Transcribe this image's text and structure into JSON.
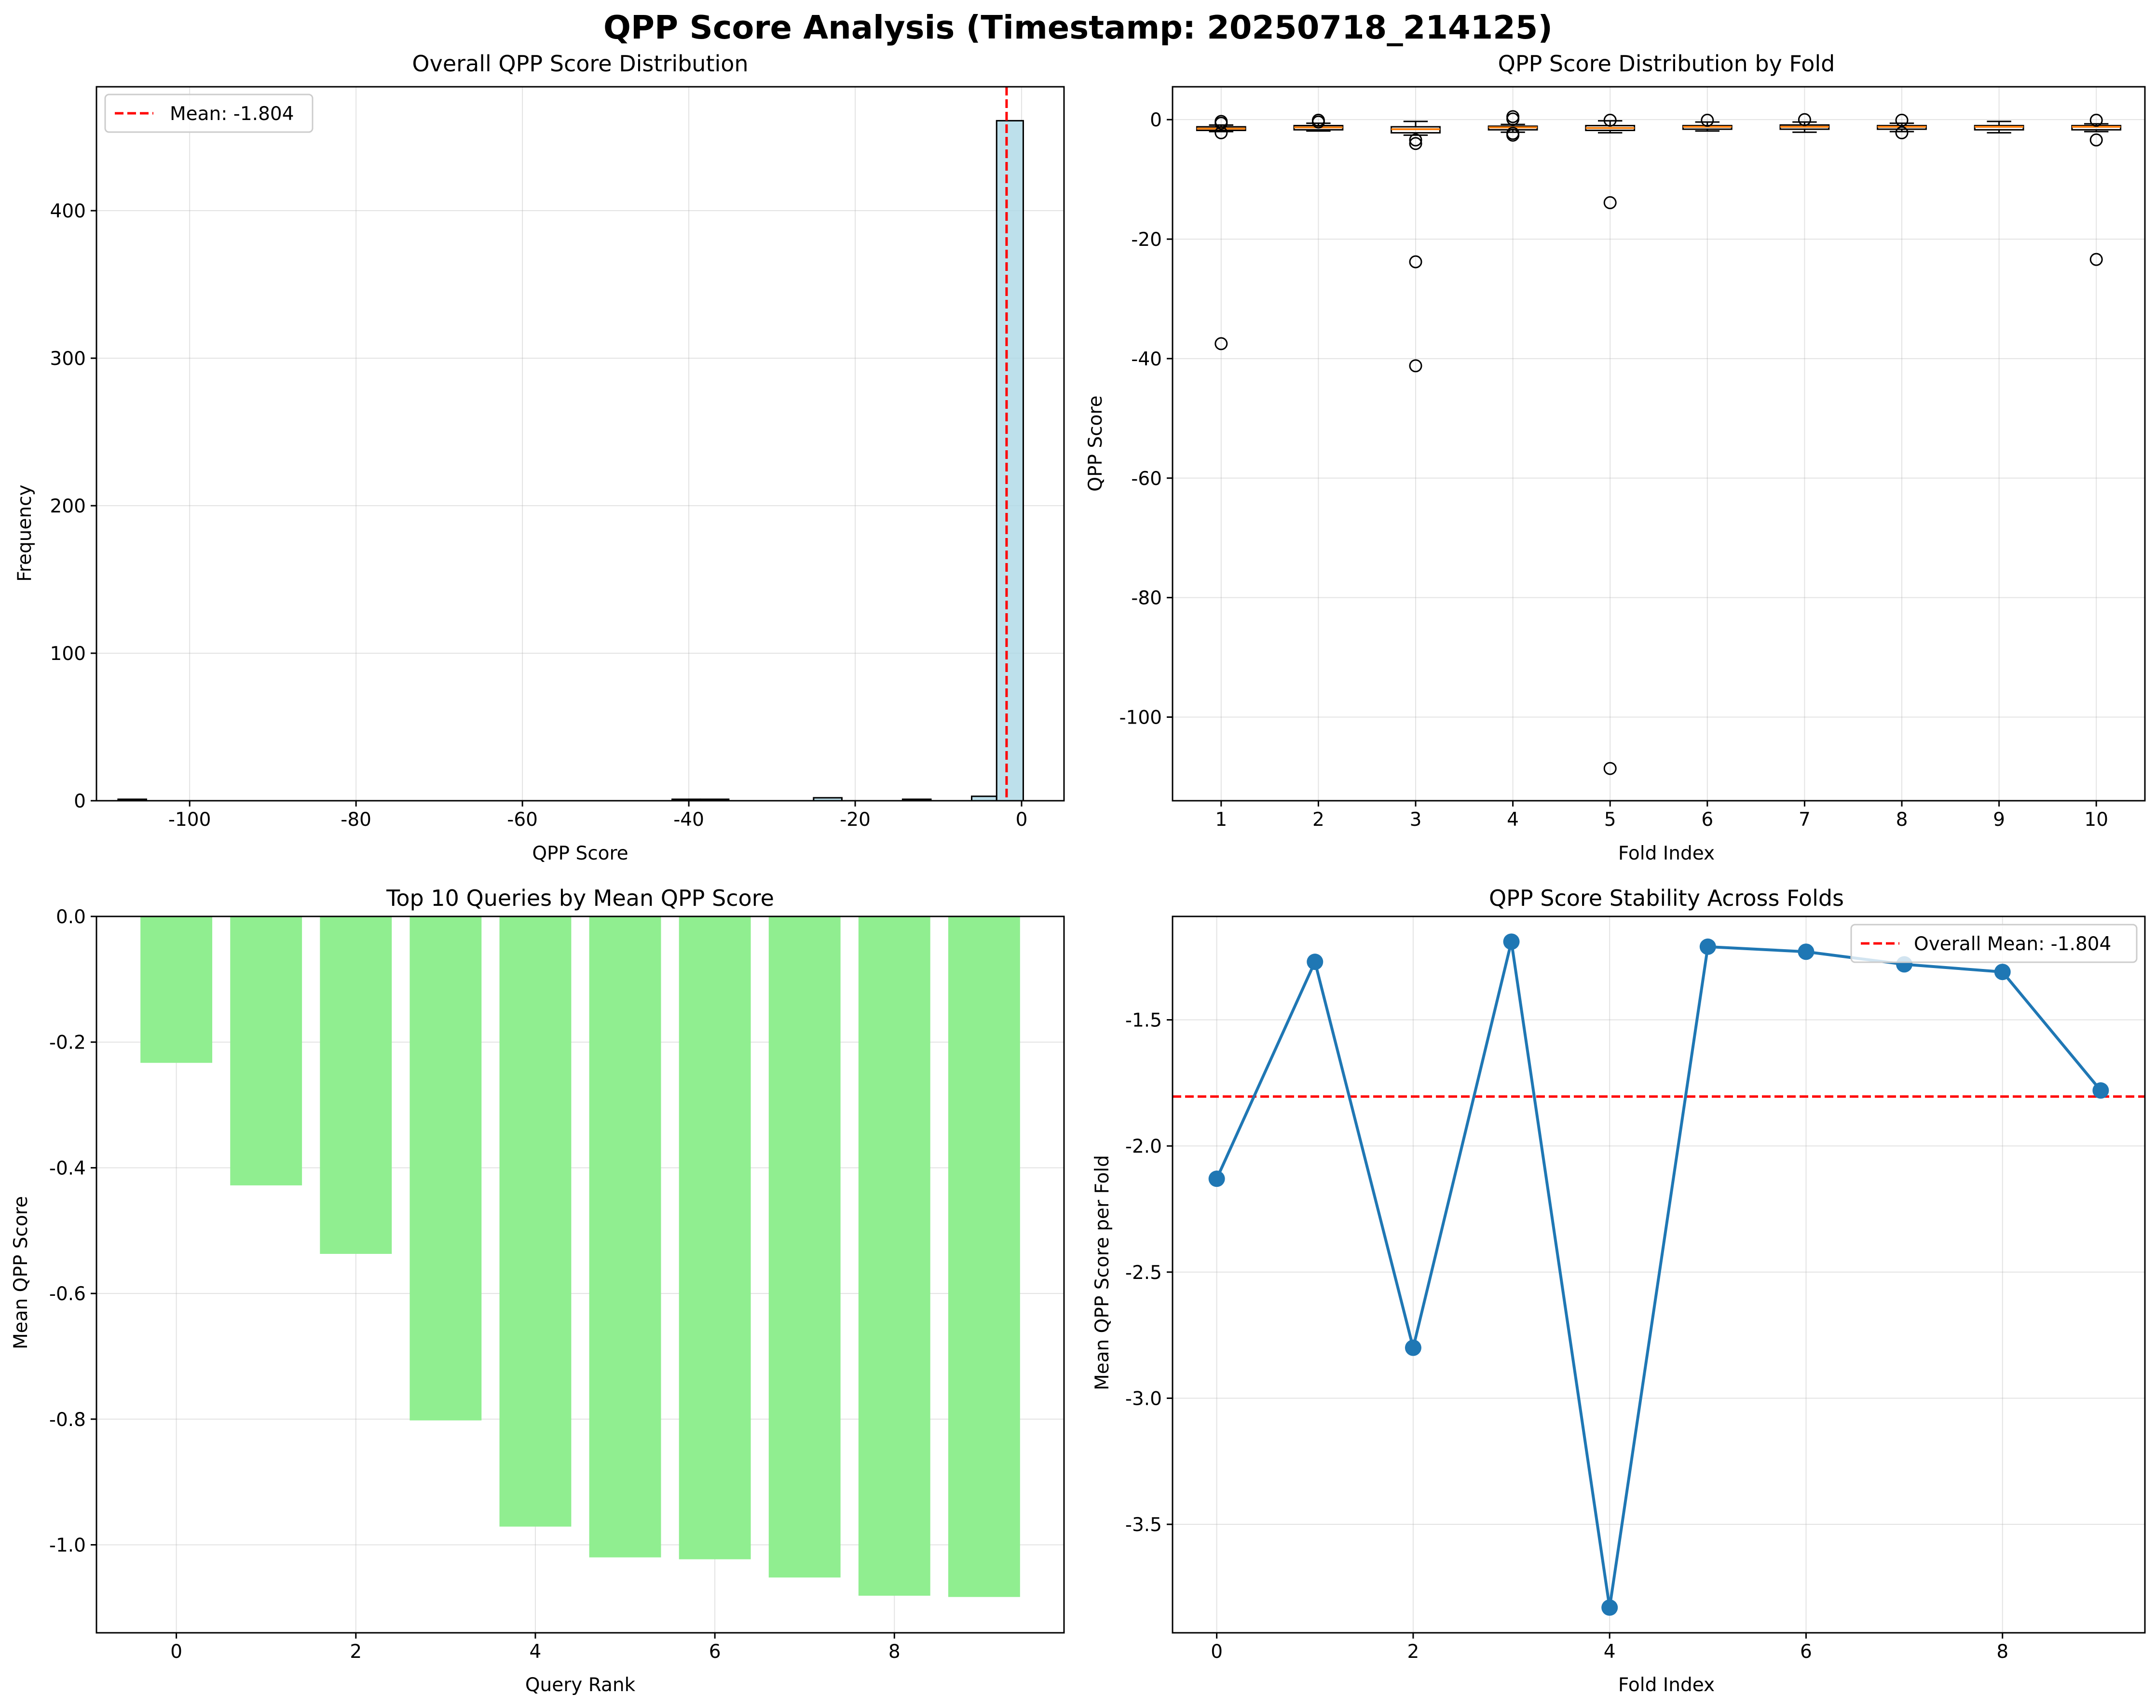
{
  "figure": {
    "suptitle": "QPP Score Analysis (Timestamp: 20250718_214125)"
  },
  "chart_data": [
    {
      "type": "histogram",
      "title": "Overall QPP Score Distribution",
      "xlabel": "QPP Score",
      "ylabel": "Frequency",
      "xlim": [
        -111.2,
        5.1
      ],
      "ylim": [
        0,
        484
      ],
      "xticks": [
        -100,
        -80,
        -60,
        -40,
        -20,
        0
      ],
      "xtick_labels": [
        "-100",
        "-80",
        "-60",
        "-40",
        "-20",
        "0"
      ],
      "yticks": [
        0,
        100,
        200,
        300,
        400
      ],
      "ytick_labels": [
        "0",
        "100",
        "200",
        "300",
        "400"
      ],
      "bins": [
        {
          "x0": -108.6,
          "x1": -105.2,
          "count": 1
        },
        {
          "x0": -42.0,
          "x1": -38.6,
          "count": 1
        },
        {
          "x0": -38.6,
          "x1": -35.2,
          "count": 1
        },
        {
          "x0": -25.0,
          "x1": -21.6,
          "count": 2
        },
        {
          "x0": -14.3,
          "x1": -10.9,
          "count": 1
        },
        {
          "x0": -6.0,
          "x1": -3.0,
          "count": 3
        },
        {
          "x0": -3.0,
          "x1": 0.2,
          "count": 461
        }
      ],
      "bar_color": "#add8e6",
      "mean_line": {
        "value": -1.804,
        "color": "#ff0000"
      },
      "legend": {
        "position": "upper-left",
        "entries": [
          "Mean: -1.804"
        ]
      },
      "grid": true
    },
    {
      "type": "box",
      "title": "QPP Score Distribution by Fold",
      "xlabel": "Fold Index",
      "ylabel": "QPP Score",
      "ylim": [
        -114.0,
        5.5
      ],
      "yticks": [
        0,
        -20,
        -40,
        -60,
        -80,
        -100
      ],
      "ytick_labels": [
        "0",
        "-20",
        "-40",
        "-60",
        "-80",
        "-100"
      ],
      "categories": [
        "1",
        "2",
        "3",
        "4",
        "5",
        "6",
        "7",
        "8",
        "9",
        "10"
      ],
      "median_color": "#ff7f0e",
      "boxes": [
        {
          "whislo": -2.0,
          "q1": -1.8,
          "med": -1.5,
          "q3": -1.2,
          "whishi": -0.9,
          "fliers": [
            -0.3,
            -0.6,
            -2.2,
            -37.5
          ]
        },
        {
          "whislo": -1.9,
          "q1": -1.7,
          "med": -1.3,
          "q3": -1.0,
          "whishi": -0.6,
          "fliers": [
            -0.1,
            -0.4
          ]
        },
        {
          "whislo": -2.6,
          "q1": -2.2,
          "med": -1.6,
          "q3": -1.2,
          "whishi": -0.3,
          "fliers": [
            -3.4,
            -4.0,
            -23.8,
            -41.2
          ]
        },
        {
          "whislo": -2.1,
          "q1": -1.7,
          "med": -1.3,
          "q3": -1.1,
          "whishi": -0.8,
          "fliers": [
            0.5,
            0.1,
            -2.3,
            -2.6
          ]
        },
        {
          "whislo": -2.2,
          "q1": -1.8,
          "med": -1.4,
          "q3": -1.0,
          "whishi": -0.2,
          "fliers": [
            -0.1,
            -13.9,
            -108.6
          ]
        },
        {
          "whislo": -1.9,
          "q1": -1.6,
          "med": -1.2,
          "q3": -1.0,
          "whishi": -0.4,
          "fliers": [
            -0.1
          ]
        },
        {
          "whislo": -2.1,
          "q1": -1.6,
          "med": -1.2,
          "q3": -0.9,
          "whishi": -0.4,
          "fliers": [
            0.0
          ]
        },
        {
          "whislo": -2.0,
          "q1": -1.6,
          "med": -1.2,
          "q3": -1.0,
          "whishi": -0.6,
          "fliers": [
            -0.1,
            -2.2
          ]
        },
        {
          "whislo": -2.2,
          "q1": -1.7,
          "med": -1.2,
          "q3": -1.0,
          "whishi": -0.3,
          "fliers": []
        },
        {
          "whislo": -2.0,
          "q1": -1.7,
          "med": -1.2,
          "q3": -1.0,
          "whishi": -0.7,
          "fliers": [
            -0.1,
            -3.4,
            -23.4
          ]
        }
      ],
      "grid": true
    },
    {
      "type": "bar",
      "title": "Top 10 Queries by Mean QPP Score",
      "xlabel": "Query Rank",
      "ylabel": "Mean QPP Score",
      "xlim": [
        -0.89,
        9.89
      ],
      "ylim": [
        -1.14,
        0.0
      ],
      "xticks": [
        0,
        2,
        4,
        6,
        8
      ],
      "xtick_labels": [
        "0",
        "2",
        "4",
        "6",
        "8"
      ],
      "yticks": [
        0.0,
        -0.2,
        -0.4,
        -0.6,
        -0.8,
        -1.0
      ],
      "ytick_labels": [
        "0.0",
        "-0.2",
        "-0.4",
        "-0.6",
        "-0.8",
        "-1.0"
      ],
      "categories": [
        0,
        1,
        2,
        3,
        4,
        5,
        6,
        7,
        8,
        9
      ],
      "values": [
        -0.233,
        -0.428,
        -0.537,
        -0.802,
        -0.971,
        -1.02,
        -1.023,
        -1.052,
        -1.081,
        -1.083
      ],
      "bar_color": "#90ee90",
      "grid": true
    },
    {
      "type": "line",
      "title": "QPP Score Stability Across Folds",
      "xlabel": "Fold Index",
      "ylabel": "Mean QPP Score per Fold",
      "xlim": [
        -0.45,
        9.45
      ],
      "ylim": [
        -3.93,
        -1.09
      ],
      "xticks": [
        0,
        2,
        4,
        6,
        8
      ],
      "xtick_labels": [
        "0",
        "2",
        "4",
        "6",
        "8"
      ],
      "yticks": [
        -1.5,
        -2.0,
        -2.5,
        -3.0,
        -3.5
      ],
      "ytick_labels": [
        "-1.5",
        "-2.0",
        "-2.5",
        "-3.0",
        "-3.5"
      ],
      "x": [
        0,
        1,
        2,
        3,
        4,
        5,
        6,
        7,
        8,
        9
      ],
      "y": [
        -2.13,
        -1.27,
        -2.8,
        -1.19,
        -3.83,
        -1.21,
        -1.23,
        -1.28,
        -1.31,
        -1.78
      ],
      "line_color": "#1f77b4",
      "mean_line": {
        "value": -1.804,
        "color": "#ff0000"
      },
      "legend": {
        "position": "upper-right",
        "entries": [
          "Overall Mean: -1.804"
        ]
      },
      "grid": true
    }
  ]
}
